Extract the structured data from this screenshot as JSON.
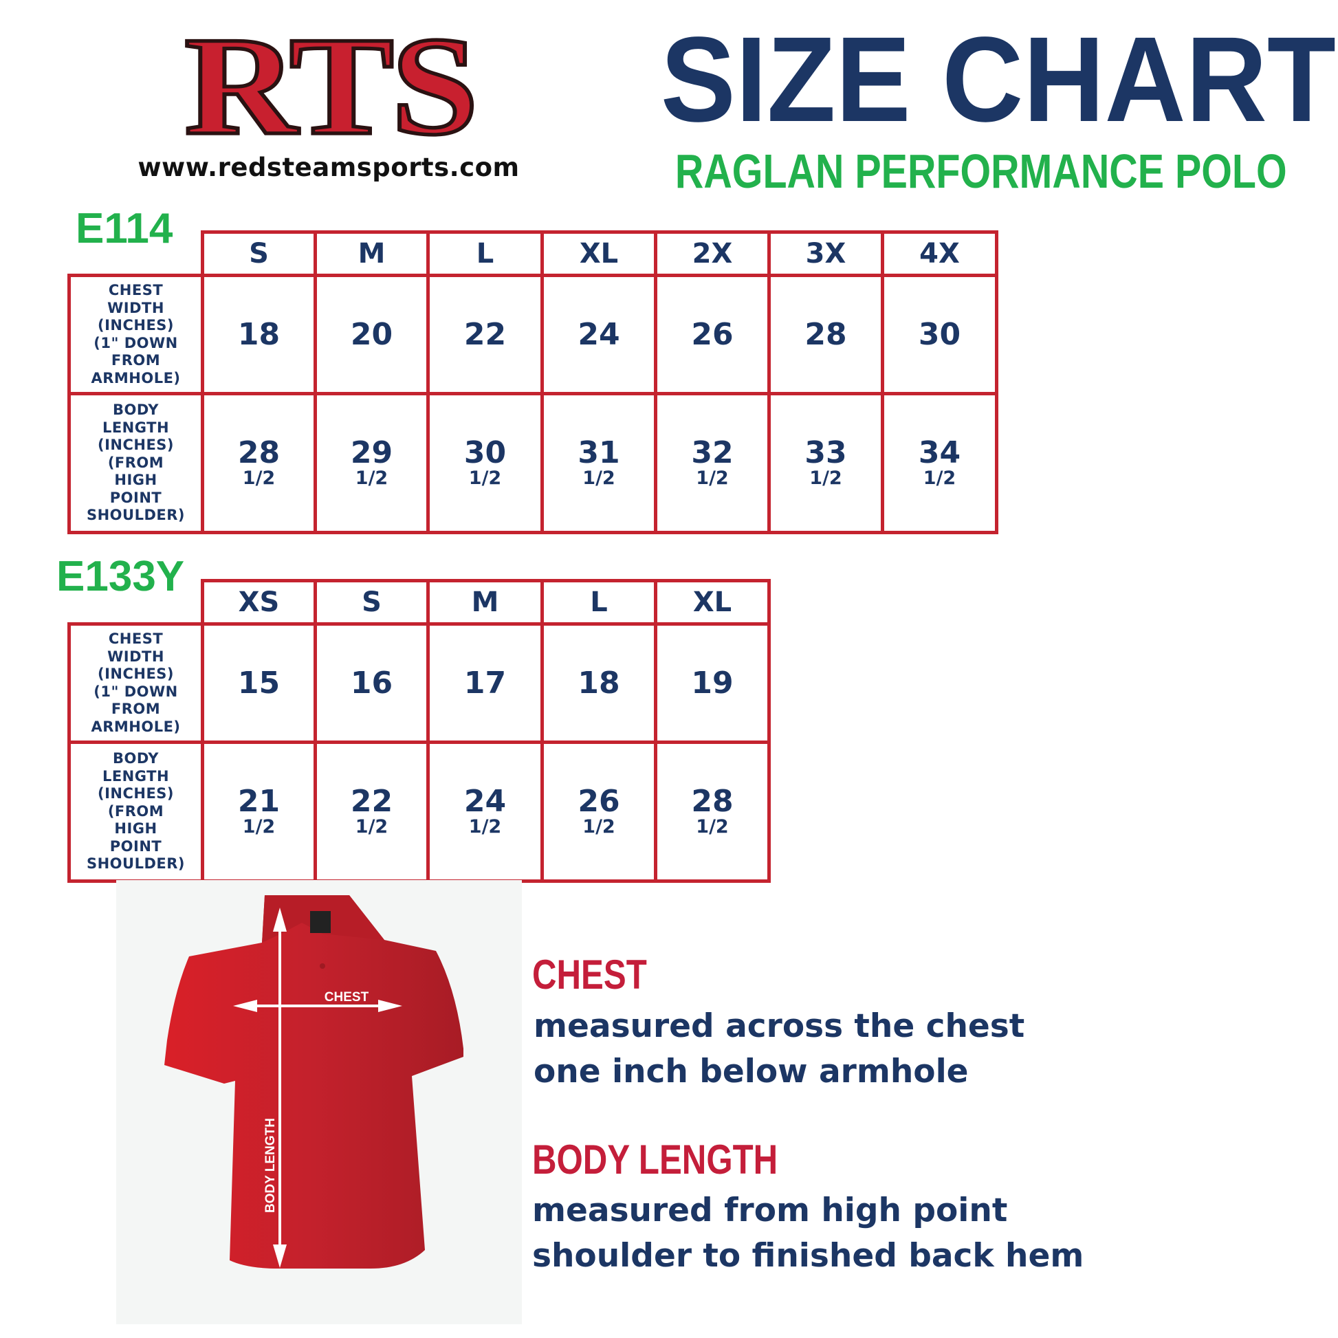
{
  "logo": {
    "text": "RTS",
    "url": "www.redsteamsports.com"
  },
  "header": {
    "title": "SIZE CHART",
    "subtitle": "RAGLAN PERFORMANCE POLO"
  },
  "colors": {
    "navy": "#1c3664",
    "red": "#c4232f",
    "green": "#22b14c",
    "shirt": "#c3212c"
  },
  "tables": [
    {
      "label": "E114",
      "sizes": [
        "S",
        "M",
        "L",
        "XL",
        "2X",
        "3X",
        "4X"
      ],
      "rows": [
        {
          "label_lines": [
            "CHEST",
            "WIDTH",
            "(INCHES)",
            "(1\" DOWN",
            "FROM",
            "ARMHOLE)"
          ],
          "values": [
            {
              "whole": "18"
            },
            {
              "whole": "20"
            },
            {
              "whole": "22"
            },
            {
              "whole": "24"
            },
            {
              "whole": "26"
            },
            {
              "whole": "28"
            },
            {
              "whole": "30"
            }
          ]
        },
        {
          "label_lines": [
            "BODY",
            "LENGTH",
            "(INCHES)",
            "(FROM",
            "HIGH",
            "POINT",
            "SHOULDER)"
          ],
          "values": [
            {
              "whole": "28",
              "frac": "1/2"
            },
            {
              "whole": "29",
              "frac": "1/2"
            },
            {
              "whole": "30",
              "frac": "1/2"
            },
            {
              "whole": "31",
              "frac": "1/2"
            },
            {
              "whole": "32",
              "frac": "1/2"
            },
            {
              "whole": "33",
              "frac": "1/2"
            },
            {
              "whole": "34",
              "frac": "1/2"
            }
          ]
        }
      ]
    },
    {
      "label": "E133Y",
      "sizes": [
        "XS",
        "S",
        "M",
        "L",
        "XL"
      ],
      "rows": [
        {
          "label_lines": [
            "CHEST",
            "WIDTH",
            "(INCHES)",
            "(1\" DOWN",
            "FROM",
            "ARMHOLE)"
          ],
          "values": [
            {
              "whole": "15"
            },
            {
              "whole": "16"
            },
            {
              "whole": "17"
            },
            {
              "whole": "18"
            },
            {
              "whole": "19"
            }
          ]
        },
        {
          "label_lines": [
            "BODY",
            "LENGTH",
            "(INCHES)",
            "(FROM",
            "HIGH",
            "POINT",
            "SHOULDER)"
          ],
          "values": [
            {
              "whole": "21",
              "frac": "1/2"
            },
            {
              "whole": "22",
              "frac": "1/2"
            },
            {
              "whole": "24",
              "frac": "1/2"
            },
            {
              "whole": "26",
              "frac": "1/2"
            },
            {
              "whole": "28",
              "frac": "1/2"
            }
          ]
        }
      ]
    }
  ],
  "diagram": {
    "chest_label": "CHEST",
    "body_length_label": "BODY LENGTH"
  },
  "legend": {
    "chest": {
      "title": "CHEST",
      "lines": [
        "measured across the chest",
        "one inch below armhole"
      ]
    },
    "body_length": {
      "title": "BODY LENGTH",
      "lines": [
        "measured from high point",
        "shoulder to finished back hem"
      ]
    }
  }
}
